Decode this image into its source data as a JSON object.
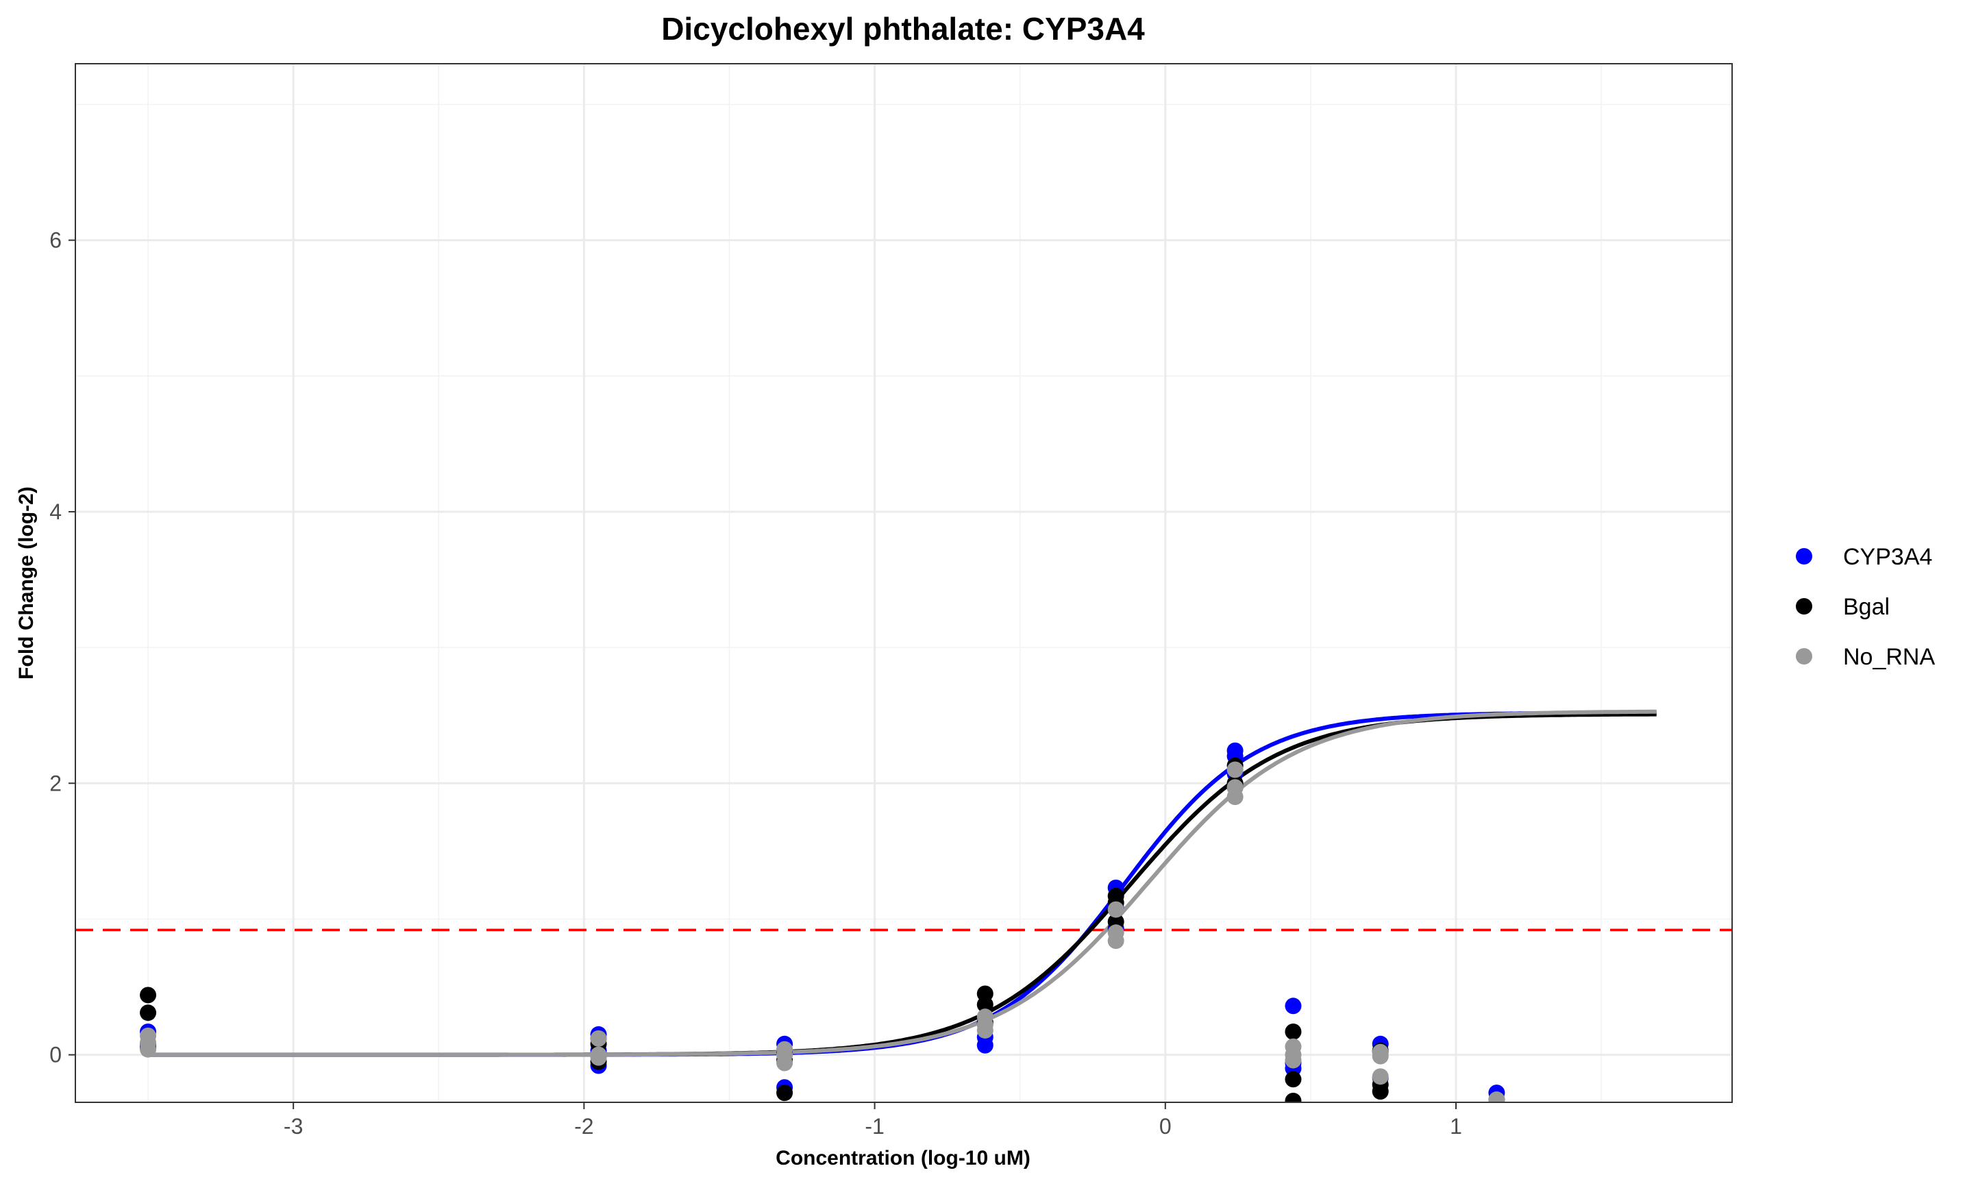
{
  "chart_data": {
    "type": "scatter",
    "title": "Dicyclohexyl phthalate: CYP3A4",
    "xlabel": "Concentration (log-10 uM)",
    "ylabel": "Fold Change (log-2)",
    "xlim": [
      -3.75,
      1.95
    ],
    "ylim": [
      -0.35,
      7.3
    ],
    "x_ticks": [
      -3,
      -2,
      -1,
      0,
      1
    ],
    "y_ticks": [
      0,
      2,
      4,
      6
    ],
    "grid": true,
    "legend_position": "right",
    "threshold": {
      "y": 0.92,
      "color": "#ff0000",
      "style": "dashed"
    },
    "series": [
      {
        "name": "CYP3A4",
        "color": "#0000ff",
        "points": [
          {
            "x": -3.5,
            "y": 0.17
          },
          {
            "x": -3.5,
            "y": 0.08
          },
          {
            "x": -3.5,
            "y": 0.05
          },
          {
            "x": -1.95,
            "y": 0.15
          },
          {
            "x": -1.95,
            "y": -0.08
          },
          {
            "x": -1.95,
            "y": 0.03
          },
          {
            "x": -1.31,
            "y": 0.08
          },
          {
            "x": -1.31,
            "y": -0.24
          },
          {
            "x": -1.31,
            "y": 0.02
          },
          {
            "x": -0.62,
            "y": 0.07
          },
          {
            "x": -0.62,
            "y": 0.13
          },
          {
            "x": -0.62,
            "y": 0.23
          },
          {
            "x": -0.17,
            "y": 1.23
          },
          {
            "x": -0.17,
            "y": 1.08
          },
          {
            "x": -0.17,
            "y": 0.93
          },
          {
            "x": 0.24,
            "y": 2.24
          },
          {
            "x": 0.24,
            "y": 2.2
          },
          {
            "x": 0.24,
            "y": 2.07
          },
          {
            "x": 0.44,
            "y": 0.36
          },
          {
            "x": 0.44,
            "y": -0.06
          },
          {
            "x": 0.44,
            "y": -0.1
          },
          {
            "x": 0.74,
            "y": 0.08
          },
          {
            "x": 0.74,
            "y": -0.17
          },
          {
            "x": 0.74,
            "y": 0.02
          },
          {
            "x": 1.14,
            "y": -0.28
          }
        ],
        "curve": {
          "bottom": 0.0,
          "top": 2.52,
          "ec50": -0.14,
          "hill": 1.95
        }
      },
      {
        "name": "Bgal",
        "color": "#000000",
        "points": [
          {
            "x": -3.5,
            "y": 0.44
          },
          {
            "x": -3.5,
            "y": 0.31
          },
          {
            "x": -3.5,
            "y": 0.05
          },
          {
            "x": -1.95,
            "y": 0.08
          },
          {
            "x": -1.95,
            "y": -0.05
          },
          {
            "x": -1.95,
            "y": 0.12
          },
          {
            "x": -1.31,
            "y": -0.28
          },
          {
            "x": -1.31,
            "y": -0.04
          },
          {
            "x": -1.31,
            "y": 0.01
          },
          {
            "x": -0.62,
            "y": 0.45
          },
          {
            "x": -0.62,
            "y": 0.37
          },
          {
            "x": -0.62,
            "y": 0.24
          },
          {
            "x": -0.17,
            "y": 1.17
          },
          {
            "x": -0.17,
            "y": 1.12
          },
          {
            "x": -0.17,
            "y": 0.98
          },
          {
            "x": 0.24,
            "y": 2.13
          },
          {
            "x": 0.24,
            "y": 2.0
          },
          {
            "x": 0.24,
            "y": 1.97
          },
          {
            "x": 0.44,
            "y": 0.17
          },
          {
            "x": 0.44,
            "y": -0.18
          },
          {
            "x": 0.44,
            "y": -0.34
          },
          {
            "x": 0.74,
            "y": -0.27
          },
          {
            "x": 0.74,
            "y": -0.22
          },
          {
            "x": 0.74,
            "y": 0.03
          },
          {
            "x": 1.14,
            "y": -0.33
          }
        ],
        "curve": {
          "bottom": 0.0,
          "top": 2.51,
          "ec50": -0.12,
          "hill": 1.72
        }
      },
      {
        "name": "No_RNA",
        "color": "#999999",
        "points": [
          {
            "x": -3.5,
            "y": 0.14
          },
          {
            "x": -3.5,
            "y": 0.09
          },
          {
            "x": -3.5,
            "y": 0.04
          },
          {
            "x": -1.95,
            "y": 0.12
          },
          {
            "x": -1.95,
            "y": 0.0
          },
          {
            "x": -1.95,
            "y": -0.02
          },
          {
            "x": -1.31,
            "y": 0.04
          },
          {
            "x": -1.31,
            "y": -0.06
          },
          {
            "x": -1.31,
            "y": 0.0
          },
          {
            "x": -0.62,
            "y": 0.28
          },
          {
            "x": -0.62,
            "y": 0.22
          },
          {
            "x": -0.62,
            "y": 0.18
          },
          {
            "x": -0.17,
            "y": 1.07
          },
          {
            "x": -0.17,
            "y": 0.9
          },
          {
            "x": -0.17,
            "y": 0.84
          },
          {
            "x": 0.24,
            "y": 2.1
          },
          {
            "x": 0.24,
            "y": 1.97
          },
          {
            "x": 0.24,
            "y": 1.9
          },
          {
            "x": 0.44,
            "y": 0.06
          },
          {
            "x": 0.44,
            "y": -0.04
          },
          {
            "x": 0.44,
            "y": 0.0
          },
          {
            "x": 0.74,
            "y": 0.02
          },
          {
            "x": 0.74,
            "y": -0.16
          },
          {
            "x": 0.74,
            "y": -0.01
          },
          {
            "x": 1.14,
            "y": -0.33
          }
        ],
        "curve": {
          "bottom": 0.0,
          "top": 2.53,
          "ec50": -0.06,
          "hill": 1.7
        }
      }
    ]
  }
}
